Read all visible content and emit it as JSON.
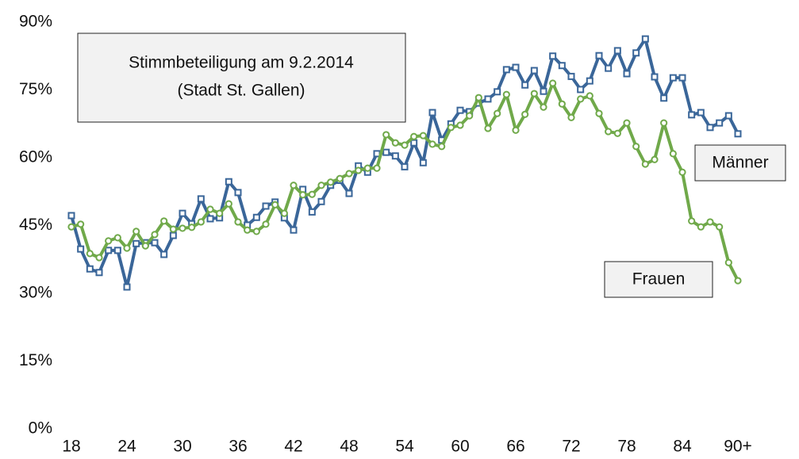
{
  "chart_data": {
    "type": "line",
    "title": "Stimmbeteiligung am 9.2.2014",
    "subtitle": "(Stadt St. Gallen)",
    "categories": [
      "18",
      null,
      null,
      null,
      null,
      null,
      "24",
      null,
      null,
      null,
      null,
      null,
      "30",
      null,
      null,
      null,
      null,
      null,
      "36",
      null,
      null,
      null,
      null,
      null,
      "42",
      null,
      null,
      null,
      null,
      null,
      "48",
      null,
      null,
      null,
      null,
      null,
      "54",
      null,
      null,
      null,
      null,
      null,
      "60",
      null,
      null,
      null,
      null,
      null,
      "66",
      null,
      null,
      null,
      null,
      null,
      "72",
      null,
      null,
      null,
      null,
      null,
      "78",
      null,
      null,
      null,
      null,
      null,
      "84",
      null,
      null,
      null,
      null,
      null,
      "90+"
    ],
    "series": [
      {
        "name": "Männer",
        "color": "#3a6699",
        "marker": "square",
        "values": [
          47.2,
          39.8,
          35.4,
          34.6,
          39.5,
          39.5,
          31.4,
          41,
          41.2,
          41.2,
          38.6,
          42.8,
          47.7,
          45.4,
          50.9,
          46.5,
          46.7,
          54.7,
          52.3,
          45.1,
          46.8,
          49.3,
          50.2,
          46.7,
          44,
          53,
          48,
          50.3,
          53.9,
          55,
          52.1,
          58.2,
          56.8,
          60.9,
          61.2,
          60.4,
          58,
          63.3,
          58.9,
          70,
          63.9,
          67.5,
          70.5,
          70.2,
          72.1,
          73,
          74.6,
          79.5,
          80,
          76.1,
          79.3,
          74.7,
          82.5,
          80.4,
          78,
          75.1,
          77,
          82.6,
          79.8,
          83.7,
          78.6,
          83.2,
          86.3,
          77.9,
          73.2,
          77.7,
          77.7,
          69.5,
          70,
          66.7,
          67.7,
          69.3,
          65.3
        ]
      },
      {
        "name": "Frauen",
        "color": "#70a94a",
        "marker": "circle",
        "values": [
          44.7,
          45.3,
          38.8,
          37.9,
          41.6,
          42.3,
          40,
          43.7,
          40.5,
          43,
          46,
          44.2,
          44.4,
          44.6,
          45.8,
          48.6,
          47.7,
          49.8,
          45.8,
          44,
          43.7,
          45.3,
          49.6,
          47.7,
          53.9,
          51.8,
          51.9,
          53.9,
          54.6,
          55.4,
          56.5,
          57.2,
          57.7,
          57.7,
          65.1,
          63.3,
          62.8,
          64.7,
          64.9,
          63,
          62.5,
          66.7,
          67.2,
          69.3,
          73.3,
          66.5,
          69.8,
          74,
          66.1,
          69.6,
          74.2,
          71.2,
          76.5,
          71.9,
          68.9,
          73,
          73.7,
          69.8,
          65.8,
          65.4,
          67.7,
          62.5,
          58.6,
          59.6,
          67.7,
          60.9,
          56.8,
          46,
          44.7,
          45.8,
          44.7,
          36.8,
          32.8
        ]
      }
    ],
    "ylim": [
      0,
      90
    ],
    "yticks": [
      {
        "value": 0,
        "label": "0%"
      },
      {
        "value": 15,
        "label": "15%"
      },
      {
        "value": 30,
        "label": "30%"
      },
      {
        "value": 45,
        "label": "45%"
      },
      {
        "value": 60,
        "label": "60%"
      },
      {
        "value": 75,
        "label": "75%"
      },
      {
        "value": 90,
        "label": "90%"
      }
    ],
    "grid": false
  }
}
